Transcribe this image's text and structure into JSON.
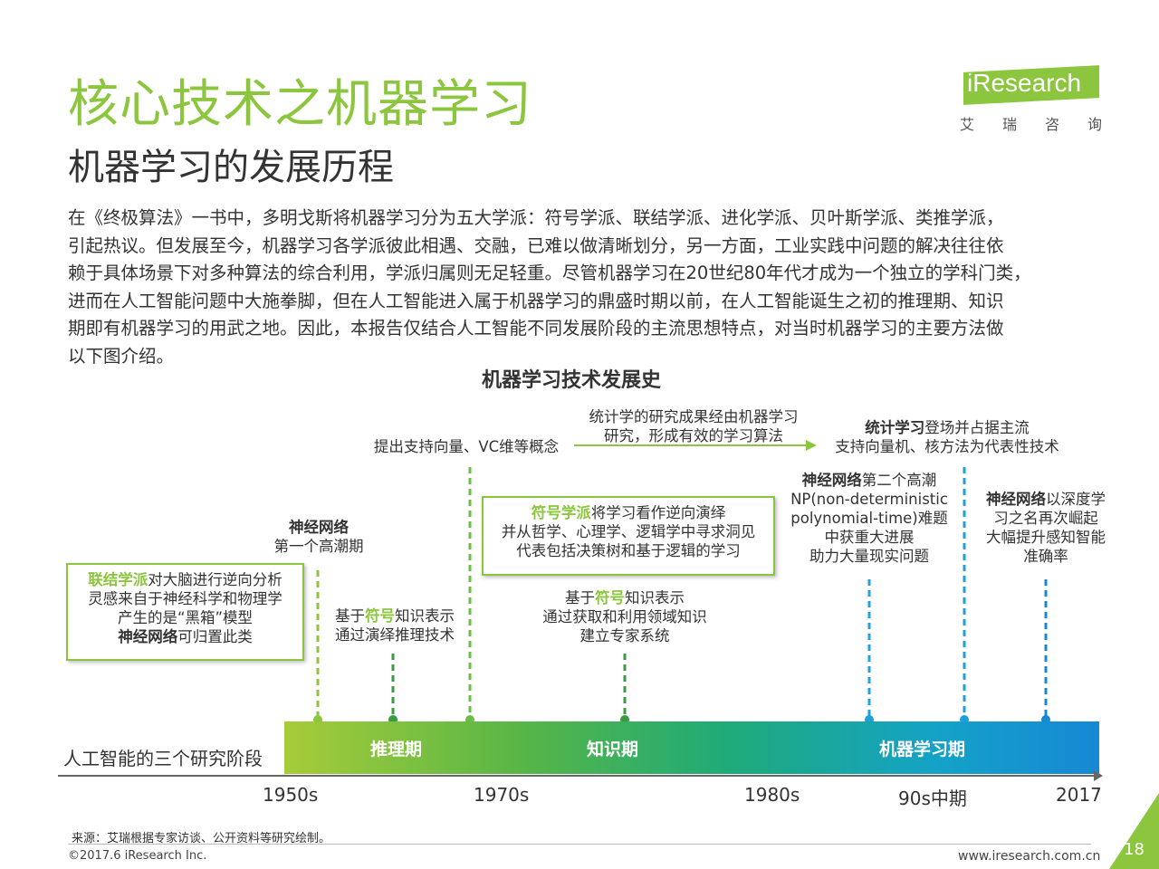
{
  "header": {
    "title": "核心技术之机器学习",
    "subtitle": "机器学习的发展历程",
    "logo_word": "iResearch",
    "logo_cn": "艾瑞咨询"
  },
  "intro_lines": [
    "在《终极算法》一书中，多明戈斯将机器学习分为五大学派：符号学派、联结学派、进化学派、贝叶斯学派、类推学派，",
    "引起热议。但发展至今，机器学习各学派彼此相遇、交融，已难以做清晰划分，另一方面，工业实践中问题的解决往往依",
    "赖于具体场景下对多种算法的综合利用，学派归属则无足轻重。尽管机器学习在20世纪80年代才成为一个独立的学科门类，",
    "进而在人工智能问题中大施拳脚，但在人工智能进入属于机器学习的鼎盛时期以前，在人工智能诞生之初的推理期、知识",
    "期即有机器学习的用武之地。因此，本报告仅结合人工智能不同发展阶段的主流思想特点，对当时机器学习的主要方法做",
    "以下图介绍。"
  ],
  "diagram": {
    "title": "机器学习技术发展史",
    "box_connectionist": {
      "hl": "联结学派",
      "line1_rest": "对大脑进行逆向分析",
      "line2": "灵感来自于神经科学和物理学",
      "line3": "产生的是“黑箱”模型",
      "line4_bold": "神经网络",
      "line4_rest": "可归置此类"
    },
    "nn_first": {
      "bold": "神经网络",
      "line2": "第一个高潮期"
    },
    "symbolic_deduction": {
      "pre": "基于",
      "hl": "符号",
      "post": "知识表示",
      "line2": "通过演绎推理技术"
    },
    "svm_concept": "提出支持向量、VC维等概念",
    "stat_research": {
      "line1": "统计学的研究成果经由机器学习",
      "line2": "研究，形成有效的学习算法"
    },
    "stat_learning": {
      "bold": "统计学习",
      "rest": "登场并占据主流",
      "line2": "支持向量机、核方法为代表性技术"
    },
    "box_symbolic": {
      "hl": "符号学派",
      "line1_rest": "将学习看作逆向演绎",
      "line2": "并从哲学、心理学、逻辑学中寻求洞见",
      "line3": "代表包括决策树和基于逻辑的学习"
    },
    "expert_system": {
      "pre": "基于",
      "hl": "符号",
      "post": "知识表示",
      "line2": "通过获取和利用领域知识",
      "line3": "建立专家系统"
    },
    "nn_second": {
      "bold": "神经网络",
      "rest": "第二个高潮",
      "line2": "NP(non-deterministic",
      "line3": "polynomial-time)难题",
      "line4": "中获重大进展",
      "line5": "助力大量现实问题"
    },
    "nn_deep": {
      "bold": "神经网络",
      "rest": "以深度学",
      "line2": "习之名再次崛起",
      "line3": "大幅提升感知智能",
      "line4": "准确率"
    },
    "stage_caption": "人工智能的三个研究阶段",
    "stages": [
      "推理期",
      "知识期",
      "机器学习期"
    ],
    "ticks": [
      "1950s",
      "1970s",
      "1980s",
      "90s中期",
      "2017"
    ],
    "colors": {
      "green": "#8cc63f",
      "dark_green": "#3a9a3f",
      "blue": "#1ea0dc"
    }
  },
  "footer": {
    "source": "来源：艾瑞根据专家访谈、公开资料等研究绘制。",
    "copyright": "©2017.6 iResearch Inc.",
    "website": "www.iresearch.com.cn",
    "page": "18"
  }
}
